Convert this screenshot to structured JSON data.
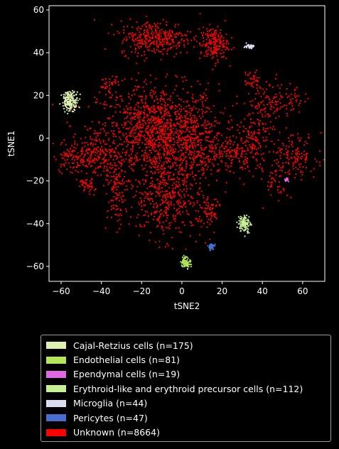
{
  "chart_data": {
    "type": "scatter",
    "title": "",
    "xlabel": "tSNE2",
    "ylabel": "tSNE1",
    "xlim": [
      -66,
      71
    ],
    "ylim": [
      -67,
      62
    ],
    "xticks": [
      -60,
      -40,
      -20,
      0,
      20,
      40,
      60
    ],
    "yticks": [
      -60,
      -40,
      -20,
      0,
      20,
      40,
      60
    ],
    "grid": false,
    "legend_placement": "below plot",
    "series": [
      {
        "name": "Cajal-Retzius cells (n=175)",
        "color": "#dff0b0",
        "n": 175,
        "clusters": [
          {
            "x": -55.5,
            "y": 17.5,
            "sx": 2.0,
            "sy": 2.2,
            "w": 1
          }
        ]
      },
      {
        "name": "Endothelial cells (n=81)",
        "color": "#b4e65a",
        "n": 81,
        "clusters": [
          {
            "x": 2.0,
            "y": -58.0,
            "sx": 1.2,
            "sy": 1.3,
            "w": 1
          }
        ]
      },
      {
        "name": "Ependymal cells (n=19)",
        "color": "#e068e0",
        "n": 19,
        "clusters": [
          {
            "x": 52.0,
            "y": -19.5,
            "sx": 0.5,
            "sy": 0.6,
            "w": 1
          }
        ]
      },
      {
        "name": "Erythroid-like and erythroid precursor cells (n=112)",
        "color": "#c8f096",
        "n": 112,
        "clusters": [
          {
            "x": 31.0,
            "y": -40.0,
            "sx": 1.5,
            "sy": 2.0,
            "w": 1
          }
        ]
      },
      {
        "name": "Microglia (n=44)",
        "color": "#dcdcf0",
        "n": 44,
        "clusters": [
          {
            "x": 33.5,
            "y": 43.0,
            "sx": 1.2,
            "sy": 0.5,
            "w": 1
          }
        ]
      },
      {
        "name": "Pericytes (n=47)",
        "color": "#4a6ed0",
        "n": 47,
        "clusters": [
          {
            "x": 14.5,
            "y": -50.8,
            "sx": 0.8,
            "sy": 0.8,
            "w": 1
          }
        ]
      },
      {
        "name": "Unknown (n=8664)",
        "color": "#ff0000",
        "n": 8664,
        "clusters": [
          {
            "x": -12,
            "y": 3,
            "sx": 15,
            "sy": 11,
            "w": 32
          },
          {
            "x": -8,
            "y": -27,
            "sx": 9,
            "sy": 10,
            "w": 12
          },
          {
            "x": -13,
            "y": 47,
            "sx": 9,
            "sy": 4,
            "w": 9
          },
          {
            "x": 16,
            "y": 44,
            "sx": 3.5,
            "sy": 4,
            "w": 5
          },
          {
            "x": 5,
            "y": -2,
            "sx": 8,
            "sy": 8,
            "w": 6
          },
          {
            "x": -50,
            "y": -8,
            "sx": 7,
            "sy": 4,
            "w": 5
          },
          {
            "x": -38,
            "y": -10,
            "sx": 5,
            "sy": 7,
            "w": 3
          },
          {
            "x": 28,
            "y": -8,
            "sx": 8,
            "sy": 5,
            "w": 5
          },
          {
            "x": 55,
            "y": -8,
            "sx": 6,
            "sy": 5,
            "w": 4
          },
          {
            "x": 42,
            "y": 16,
            "sx": 6,
            "sy": 5,
            "w": 3
          },
          {
            "x": 37,
            "y": 2,
            "sx": 4,
            "sy": 4,
            "w": 2
          },
          {
            "x": 35,
            "y": 27,
            "sx": 2,
            "sy": 2,
            "w": 1
          },
          {
            "x": 47,
            "y": -22,
            "sx": 3,
            "sy": 4,
            "w": 1
          },
          {
            "x": 13,
            "y": -35,
            "sx": 3,
            "sy": 5,
            "w": 2
          },
          {
            "x": -33,
            "y": -32,
            "sx": 2,
            "sy": 5,
            "w": 1
          },
          {
            "x": -48,
            "y": -22,
            "sx": 2,
            "sy": 2,
            "w": 1
          },
          {
            "x": -36,
            "y": 25,
            "sx": 2.5,
            "sy": 2,
            "w": 1
          },
          {
            "x": -32,
            "y": -22,
            "sx": 2,
            "sy": 3,
            "w": 1
          },
          {
            "x": 55,
            "y": 17,
            "sx": 3,
            "sy": 3,
            "w": 1
          }
        ]
      }
    ]
  }
}
